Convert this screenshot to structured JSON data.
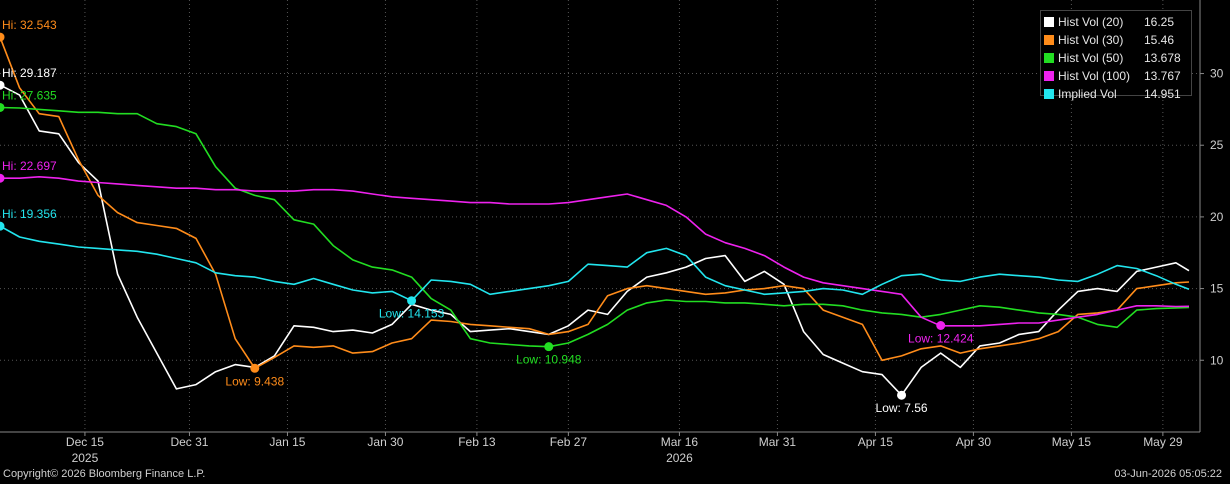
{
  "footer": {
    "copyright": "Copyright© 2026 Bloomberg Finance L.P.",
    "timestamp": "03-Jun-2026 05:05:22"
  },
  "chart_data": {
    "type": "line",
    "title": "",
    "xlabel": "",
    "ylabel": "",
    "ylim": [
      5,
      35
    ],
    "yticks": [
      10,
      15,
      20,
      25,
      30
    ],
    "y_axis_side": "right",
    "grid": true,
    "legend_position": "top-right",
    "x_range": [
      "2025-12-02",
      "2026-06-02"
    ],
    "xticks": [
      {
        "date": "2025-12-15",
        "label": "Dec 15"
      },
      {
        "date": "2025-12-31",
        "label": "Dec 31"
      },
      {
        "date": "2026-01-15",
        "label": "Jan 15"
      },
      {
        "date": "2026-01-30",
        "label": "Jan 30"
      },
      {
        "date": "2026-02-13",
        "label": "Feb 13"
      },
      {
        "date": "2026-02-27",
        "label": "Feb 27"
      },
      {
        "date": "2026-03-16",
        "label": "Mar 16"
      },
      {
        "date": "2026-03-31",
        "label": "Mar 31"
      },
      {
        "date": "2026-04-15",
        "label": "Apr 15"
      },
      {
        "date": "2026-04-30",
        "label": "Apr 30"
      },
      {
        "date": "2026-05-15",
        "label": "May 15"
      },
      {
        "date": "2026-05-29",
        "label": "May 29"
      }
    ],
    "year_labels": [
      {
        "date": "2025-12-15",
        "label": "2025"
      },
      {
        "date": "2026-03-16",
        "label": "2026"
      }
    ],
    "x": [
      "2025-12-02",
      "2025-12-05",
      "2025-12-08",
      "2025-12-11",
      "2025-12-14",
      "2025-12-17",
      "2025-12-20",
      "2025-12-23",
      "2025-12-26",
      "2025-12-29",
      "2026-01-01",
      "2026-01-04",
      "2026-01-07",
      "2026-01-10",
      "2026-01-13",
      "2026-01-16",
      "2026-01-19",
      "2026-01-22",
      "2026-01-25",
      "2026-01-28",
      "2026-01-31",
      "2026-02-03",
      "2026-02-06",
      "2026-02-09",
      "2026-02-12",
      "2026-02-15",
      "2026-02-18",
      "2026-02-21",
      "2026-02-24",
      "2026-02-27",
      "2026-03-02",
      "2026-03-05",
      "2026-03-08",
      "2026-03-11",
      "2026-03-14",
      "2026-03-17",
      "2026-03-20",
      "2026-03-23",
      "2026-03-26",
      "2026-03-29",
      "2026-04-01",
      "2026-04-04",
      "2026-04-07",
      "2026-04-10",
      "2026-04-13",
      "2026-04-16",
      "2026-04-19",
      "2026-04-22",
      "2026-04-25",
      "2026-04-28",
      "2026-05-01",
      "2026-05-04",
      "2026-05-07",
      "2026-05-10",
      "2026-05-13",
      "2026-05-16",
      "2026-05-19",
      "2026-05-22",
      "2026-05-25",
      "2026-05-28",
      "2026-05-31",
      "2026-06-02"
    ],
    "series": [
      {
        "name": "Hist Vol (20)",
        "color": "#ffffff",
        "last": "16.25",
        "values": [
          29.2,
          28.5,
          26.0,
          25.8,
          23.8,
          22.5,
          16.0,
          13.0,
          10.5,
          8.0,
          8.3,
          9.2,
          9.7,
          9.5,
          10.3,
          12.4,
          12.3,
          12.0,
          12.1,
          11.9,
          12.5,
          13.9,
          13.5,
          13.2,
          12.0,
          12.1,
          12.2,
          12.0,
          11.8,
          12.4,
          13.5,
          13.2,
          14.8,
          15.8,
          16.1,
          16.5,
          17.1,
          17.3,
          15.5,
          16.2,
          15.3,
          12.0,
          10.4,
          9.8,
          9.2,
          9.0,
          7.56,
          9.5,
          10.5,
          9.5,
          11.0,
          11.2,
          11.8,
          12.0,
          13.5,
          14.8,
          15.0,
          14.8,
          16.2,
          16.5,
          16.8,
          16.25
        ]
      },
      {
        "name": "Hist Vol (30)",
        "color": "#ff8c1a",
        "last": "15.46",
        "values": [
          32.543,
          29.0,
          27.2,
          27.0,
          24.0,
          21.5,
          20.3,
          19.6,
          19.4,
          19.2,
          18.5,
          16.0,
          11.5,
          9.438,
          10.2,
          11.0,
          10.9,
          11.0,
          10.5,
          10.6,
          11.2,
          11.5,
          12.8,
          12.7,
          12.5,
          12.4,
          12.3,
          12.2,
          11.8,
          12.0,
          12.5,
          14.5,
          15.0,
          15.2,
          15.0,
          14.8,
          14.6,
          14.7,
          14.9,
          15.0,
          15.2,
          15.0,
          13.5,
          13.0,
          12.5,
          10.0,
          10.3,
          10.8,
          11.0,
          10.5,
          10.8,
          11.0,
          11.2,
          11.5,
          12.0,
          13.2,
          13.3,
          13.5,
          15.0,
          15.2,
          15.4,
          15.46
        ]
      },
      {
        "name": "Hist Vol (50)",
        "color": "#22dd22",
        "last": "13.678",
        "values": [
          27.635,
          27.6,
          27.5,
          27.4,
          27.3,
          27.3,
          27.2,
          27.2,
          26.5,
          26.3,
          25.8,
          23.5,
          22.0,
          21.5,
          21.2,
          19.8,
          19.5,
          18.0,
          17.0,
          16.5,
          16.3,
          15.8,
          14.3,
          13.5,
          11.5,
          11.2,
          11.1,
          11.0,
          10.948,
          11.2,
          11.8,
          12.5,
          13.5,
          14.0,
          14.2,
          14.1,
          14.1,
          14.0,
          14.0,
          13.9,
          13.8,
          13.9,
          13.9,
          13.8,
          13.5,
          13.3,
          13.2,
          13.0,
          13.2,
          13.5,
          13.8,
          13.7,
          13.5,
          13.3,
          13.2,
          13.0,
          12.5,
          12.3,
          13.5,
          13.6,
          13.65,
          13.678
        ]
      },
      {
        "name": "Hist Vol (100)",
        "color": "#ee22ee",
        "last": "13.767",
        "values": [
          22.697,
          22.7,
          22.8,
          22.7,
          22.5,
          22.4,
          22.3,
          22.2,
          22.1,
          22.0,
          22.0,
          21.9,
          21.9,
          21.8,
          21.8,
          21.8,
          21.9,
          21.9,
          21.8,
          21.6,
          21.4,
          21.3,
          21.2,
          21.1,
          21.0,
          21.0,
          20.9,
          20.9,
          20.9,
          21.0,
          21.2,
          21.4,
          21.6,
          21.2,
          20.8,
          20.0,
          18.8,
          18.2,
          17.8,
          17.3,
          16.5,
          15.8,
          15.4,
          15.2,
          15.0,
          14.8,
          14.6,
          13.0,
          12.4,
          12.4,
          12.4,
          12.5,
          12.6,
          12.6,
          12.8,
          13.0,
          13.2,
          13.5,
          13.8,
          13.8,
          13.75,
          13.767
        ]
      },
      {
        "name": "Implied Vol",
        "color": "#22e5ee",
        "last": "14.951",
        "values": [
          19.356,
          18.6,
          18.3,
          18.1,
          17.9,
          17.8,
          17.7,
          17.6,
          17.4,
          17.1,
          16.8,
          16.1,
          15.9,
          15.8,
          15.5,
          15.3,
          15.7,
          15.3,
          14.9,
          14.7,
          14.8,
          14.153,
          15.6,
          15.5,
          15.3,
          14.6,
          14.8,
          15.0,
          15.2,
          15.5,
          16.7,
          16.6,
          16.5,
          17.5,
          17.8,
          17.3,
          15.8,
          15.2,
          14.9,
          14.6,
          14.7,
          14.8,
          15.0,
          14.9,
          14.6,
          15.3,
          15.9,
          16.0,
          15.6,
          15.5,
          15.8,
          16.0,
          15.9,
          15.8,
          15.6,
          15.5,
          16.0,
          16.6,
          16.4,
          15.9,
          15.3,
          14.951
        ]
      }
    ],
    "annotations": [
      {
        "text": "Hi: 32.543",
        "series": 1,
        "date": "2025-12-02",
        "value": 32.543,
        "color": "#ff8c1a"
      },
      {
        "text": "Hi: 29.187",
        "series": 0,
        "date": "2025-12-02",
        "value": 29.187,
        "color": "#ffffff"
      },
      {
        "text": "Hi: 27.635",
        "series": 2,
        "date": "2025-12-02",
        "value": 27.635,
        "color": "#22dd22"
      },
      {
        "text": "Hi: 22.697",
        "series": 3,
        "date": "2025-12-02",
        "value": 22.697,
        "color": "#ee22ee"
      },
      {
        "text": "Hi: 19.356",
        "series": 4,
        "date": "2025-12-02",
        "value": 19.356,
        "color": "#22e5ee"
      },
      {
        "text": "Low: 9.438",
        "series": 1,
        "date": "2026-01-10",
        "value": 9.438,
        "color": "#ff8c1a"
      },
      {
        "text": "Low: 14.153",
        "series": 4,
        "date": "2026-02-03",
        "value": 14.153,
        "color": "#22e5ee"
      },
      {
        "text": "Low: 10.948",
        "series": 2,
        "date": "2026-02-24",
        "value": 10.948,
        "color": "#22dd22"
      },
      {
        "text": "Low: 12.424",
        "series": 3,
        "date": "2026-04-25",
        "value": 12.424,
        "color": "#ee22ee"
      },
      {
        "text": "Low: 7.56",
        "series": 0,
        "date": "2026-04-19",
        "value": 7.56,
        "color": "#ffffff"
      }
    ]
  }
}
